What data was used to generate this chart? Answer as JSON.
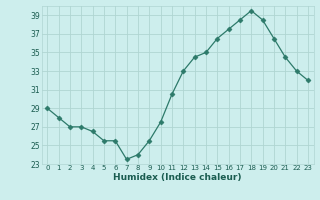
{
  "x": [
    0,
    1,
    2,
    3,
    4,
    5,
    6,
    7,
    8,
    9,
    10,
    11,
    12,
    13,
    14,
    15,
    16,
    17,
    18,
    19,
    20,
    21,
    22,
    23
  ],
  "y": [
    29,
    28,
    27,
    27,
    26.5,
    25.5,
    25.5,
    23.5,
    24,
    25.5,
    27.5,
    30.5,
    33,
    34.5,
    35,
    36.5,
    37.5,
    38.5,
    39.5,
    38.5,
    36.5,
    34.5,
    33,
    32
  ],
  "xlabel": "Humidex (Indice chaleur)",
  "ylim": [
    23,
    40
  ],
  "yticks": [
    23,
    25,
    27,
    29,
    31,
    33,
    35,
    37,
    39
  ],
  "line_color": "#2d7a6a",
  "marker": "D",
  "marker_size": 2.5,
  "background_color": "#cdeeed",
  "grid_color": "#b0d5d2",
  "label_color": "#1a5c50"
}
